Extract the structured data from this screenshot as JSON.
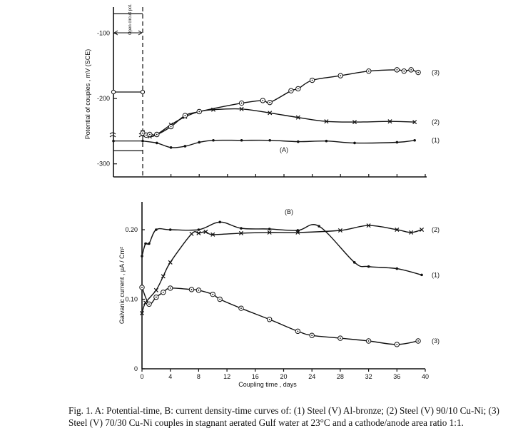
{
  "caption": "Fig. 1. A: Potential-time, B: current density-time curves of: (1) Steel (V) Al-bronze; (2) Steel (V) 90/10 Cu-Ni; (3)  Steel (V) 70/30 Cu-Ni couples in stagnant aerated Gulf water at 23°C and a cathode/anode area ratio 1:1.",
  "chart_data": [
    {
      "type": "line",
      "panel_label": "(A)",
      "ylabel": "Potential of couples , mV (SCE)",
      "xlim": [
        0,
        40
      ],
      "ylim": [
        -320,
        -60
      ],
      "y_ticks": [
        {
          "value": -100,
          "label": "-100"
        },
        {
          "value": -200,
          "label": "-200"
        },
        {
          "value": -300,
          "label": "-300"
        }
      ],
      "open_circuit_label": "Open circuit pot.",
      "open_circuit_values": [
        -280,
        -265,
        -190,
        -70
      ],
      "series": [
        {
          "name": "(1)",
          "marker": "dot",
          "points": [
            [
              0,
              -265
            ],
            [
              2,
              -268
            ],
            [
              4,
              -275
            ],
            [
              6,
              -273
            ],
            [
              8,
              -267
            ],
            [
              10,
              -264
            ],
            [
              14,
              -264
            ],
            [
              18,
              -264
            ],
            [
              22,
              -266
            ],
            [
              26,
              -265
            ],
            [
              30,
              -268
            ],
            [
              36,
              -267
            ],
            [
              38.5,
              -264
            ]
          ]
        },
        {
          "name": "(2)",
          "marker": "x",
          "points": [
            [
              0,
              -251
            ],
            [
              1,
              -258
            ],
            [
              2,
              -255
            ],
            [
              4,
              -240
            ],
            [
              6,
              -228
            ],
            [
              8,
              -220
            ],
            [
              10,
              -217
            ],
            [
              14,
              -216
            ],
            [
              18,
              -222
            ],
            [
              22,
              -229
            ],
            [
              26,
              -235
            ],
            [
              30,
              -236
            ],
            [
              35,
              -235
            ],
            [
              38.5,
              -236
            ]
          ]
        },
        {
          "name": "(3)",
          "marker": "circle",
          "points": [
            [
              0,
              -253
            ],
            [
              0.5,
              -256
            ],
            [
              1,
              -255
            ],
            [
              2,
              -255
            ],
            [
              4,
              -243
            ],
            [
              6,
              -226
            ],
            [
              8,
              -220
            ],
            [
              14,
              -207
            ],
            [
              17,
              -203
            ],
            [
              18,
              -206
            ],
            [
              21,
              -188
            ],
            [
              22,
              -185
            ],
            [
              24,
              -172
            ],
            [
              28,
              -165
            ],
            [
              32,
              -158
            ],
            [
              36,
              -156
            ],
            [
              37,
              -158
            ],
            [
              38,
              -156
            ],
            [
              39,
              -160
            ]
          ]
        }
      ]
    },
    {
      "type": "line",
      "panel_label": "(B)",
      "xlabel": "Coupling time , days",
      "ylabel": "Galvanic current , µA / Cm²",
      "xlim": [
        0,
        40
      ],
      "ylim": [
        0,
        0.24
      ],
      "x_ticks": [
        0,
        4,
        8,
        12,
        16,
        20,
        24,
        28,
        32,
        36,
        40
      ],
      "y_ticks": [
        {
          "value": 0,
          "label": "0"
        },
        {
          "value": 0.1,
          "label": "0.10"
        },
        {
          "value": 0.2,
          "label": "0.20"
        }
      ],
      "series": [
        {
          "name": "(1)",
          "marker": "dot",
          "points": [
            [
              0,
              0.162
            ],
            [
              0.5,
              0.18
            ],
            [
              1,
              0.18
            ],
            [
              2,
              0.2
            ],
            [
              4,
              0.2
            ],
            [
              8,
              0.2
            ],
            [
              11,
              0.211
            ],
            [
              14,
              0.202
            ],
            [
              18,
              0.201
            ],
            [
              22,
              0.199
            ],
            [
              25,
              0.205
            ],
            [
              30,
              0.153
            ],
            [
              32,
              0.147
            ],
            [
              36,
              0.144
            ],
            [
              39.5,
              0.135
            ]
          ]
        },
        {
          "name": "(2)",
          "marker": "x",
          "points": [
            [
              0,
              0.08
            ],
            [
              0.5,
              0.095
            ],
            [
              2,
              0.113
            ],
            [
              3,
              0.133
            ],
            [
              4,
              0.153
            ],
            [
              7,
              0.194
            ],
            [
              8,
              0.195
            ],
            [
              9,
              0.197
            ],
            [
              10,
              0.193
            ],
            [
              14,
              0.195
            ],
            [
              18,
              0.196
            ],
            [
              22,
              0.196
            ],
            [
              28,
              0.199
            ],
            [
              32,
              0.206
            ],
            [
              36,
              0.2
            ],
            [
              38,
              0.196
            ],
            [
              39.5,
              0.2
            ]
          ]
        },
        {
          "name": "(3)",
          "marker": "circle",
          "points": [
            [
              0,
              0.117
            ],
            [
              1,
              0.093
            ],
            [
              2,
              0.103
            ],
            [
              3,
              0.11
            ],
            [
              4,
              0.116
            ],
            [
              7,
              0.114
            ],
            [
              8,
              0.113
            ],
            [
              10,
              0.107
            ],
            [
              11,
              0.1
            ],
            [
              14,
              0.087
            ],
            [
              18,
              0.071
            ],
            [
              22,
              0.054
            ],
            [
              24,
              0.048
            ],
            [
              28,
              0.044
            ],
            [
              32,
              0.04
            ],
            [
              36,
              0.035
            ],
            [
              39,
              0.04
            ]
          ]
        }
      ]
    }
  ]
}
